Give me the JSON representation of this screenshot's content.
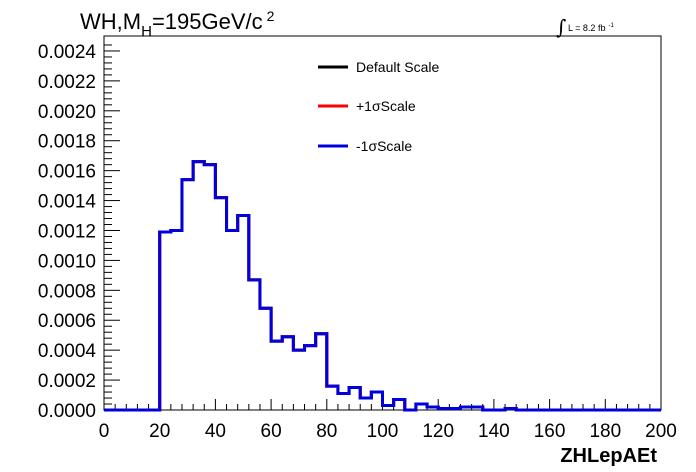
{
  "title": {
    "prefix": "WH,M",
    "subscript": "H",
    "mid": "=195GeV/c",
    "superscript": "2"
  },
  "lumi": {
    "integral": "∫",
    "text": "L = 8.2 fb",
    "superscript": "-1"
  },
  "chart_data": {
    "type": "line",
    "xlabel": "ZHLepAEt",
    "ylabel": "",
    "xlim": [
      0,
      200
    ],
    "ylim": [
      0,
      0.0025
    ],
    "x_ticks": [
      "0",
      "20",
      "40",
      "60",
      "80",
      "100",
      "120",
      "140",
      "160",
      "180",
      "200"
    ],
    "y_ticks": [
      "0.0000",
      "0.0002",
      "0.0004",
      "0.0006",
      "0.0008",
      "0.0010",
      "0.0012",
      "0.0014",
      "0.0016",
      "0.0018",
      "0.0020",
      "0.0022",
      "0.0024"
    ],
    "bin_edges": [
      0,
      4,
      8,
      12,
      16,
      20,
      24,
      28,
      32,
      36,
      40,
      44,
      48,
      52,
      56,
      60,
      64,
      68,
      72,
      76,
      80,
      84,
      88,
      92,
      96,
      100,
      104,
      108,
      112,
      116,
      120,
      124,
      128,
      132,
      136,
      140,
      144,
      148,
      152,
      156,
      160,
      164,
      168,
      172,
      176,
      180,
      184,
      188,
      192,
      196,
      200
    ],
    "legend": {
      "position": "top-center"
    },
    "series": [
      {
        "name": "Default Scale",
        "color": "#000000",
        "values": [
          0,
          0,
          0,
          0,
          0,
          0.00119,
          0.0012,
          0.00154,
          0.00166,
          0.00164,
          0.00142,
          0.0012,
          0.0013,
          0.00087,
          0.00068,
          0.00046,
          0.00049,
          0.0004,
          0.00043,
          0.00051,
          0.00016,
          0.00011,
          0.00015,
          8e-05,
          0.00012,
          3e-05,
          7e-05,
          0.0,
          4e-05,
          2e-05,
          1e-05,
          1e-05,
          2e-05,
          2e-05,
          0.0,
          0.0,
          1e-05,
          0,
          0,
          0,
          0,
          0,
          0,
          0,
          0,
          0,
          0,
          0,
          0,
          0
        ]
      },
      {
        "name": "+1σScale",
        "color": "#ff0000",
        "values": [
          0,
          0,
          0,
          0,
          0,
          0.00119,
          0.0012,
          0.00154,
          0.00166,
          0.00164,
          0.00142,
          0.0012,
          0.0013,
          0.00087,
          0.00068,
          0.00046,
          0.00049,
          0.0004,
          0.00043,
          0.00051,
          0.00016,
          0.00011,
          0.00015,
          8e-05,
          0.00012,
          3e-05,
          7e-05,
          0.0,
          4e-05,
          2e-05,
          1e-05,
          1e-05,
          2e-05,
          2e-05,
          0.0,
          0.0,
          1e-05,
          0,
          0,
          0,
          0,
          0,
          0,
          0,
          0,
          0,
          0,
          0,
          0,
          0
        ]
      },
      {
        "name": "-1σScale",
        "color": "#0000dd",
        "values": [
          0,
          0,
          0,
          0,
          0,
          0.00119,
          0.0012,
          0.00154,
          0.00166,
          0.00164,
          0.00142,
          0.0012,
          0.0013,
          0.00087,
          0.00068,
          0.00046,
          0.00049,
          0.0004,
          0.00043,
          0.00051,
          0.00016,
          0.00011,
          0.00015,
          8e-05,
          0.00012,
          3e-05,
          7e-05,
          0.0,
          4e-05,
          2e-05,
          1e-05,
          1e-05,
          2e-05,
          2e-05,
          0.0,
          0.0,
          1e-05,
          0,
          0,
          0,
          0,
          0,
          0,
          0,
          0,
          0,
          0,
          0,
          0,
          0
        ]
      }
    ]
  }
}
